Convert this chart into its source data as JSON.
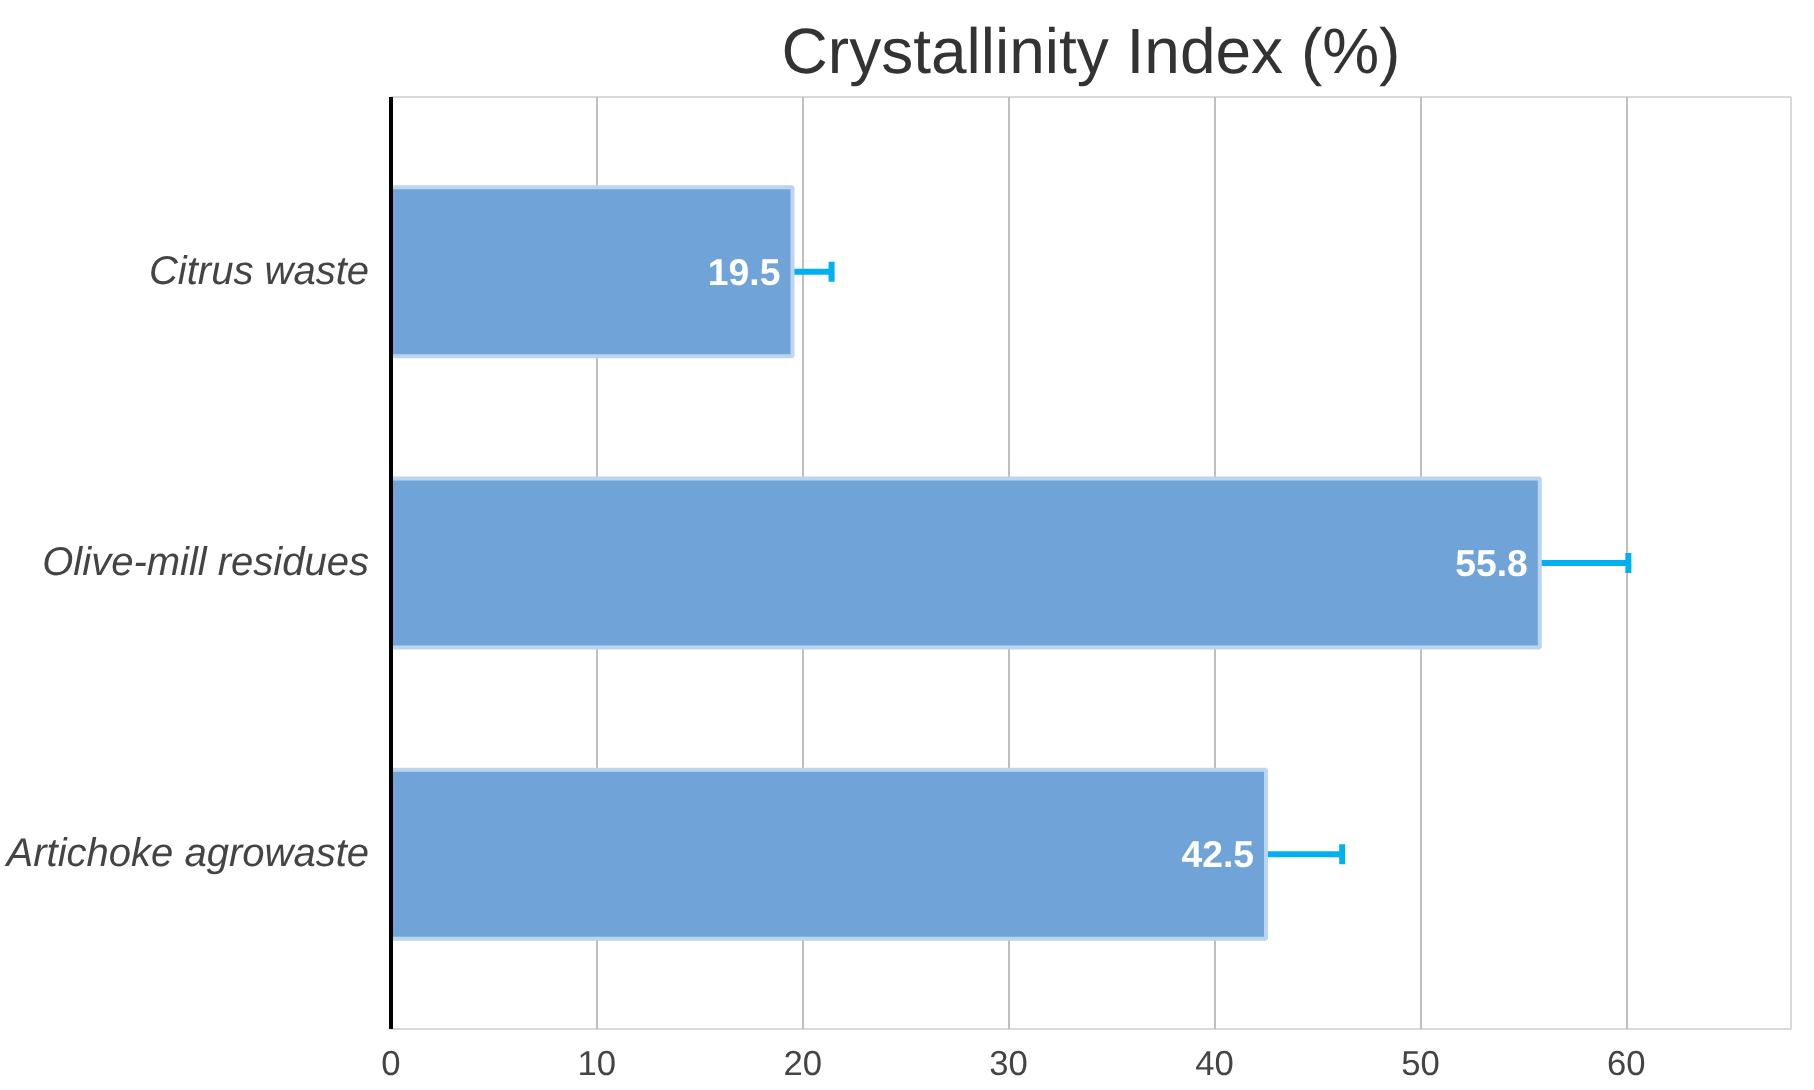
{
  "chart_data": {
    "type": "bar",
    "orientation": "horizontal",
    "title": "Crystallinity Index (%)",
    "categories": [
      "Citrus waste",
      "Olive-mill residues",
      "Artichoke agrowaste"
    ],
    "values": [
      19.5,
      55.8,
      42.5
    ],
    "color": "#70a4d8",
    "errors": [
      [
        19.5,
        21.4
      ],
      [
        55.8,
        60.1
      ],
      [
        42.5,
        46.2
      ]
    ],
    "data_labels": true,
    "xlim": [
      0,
      68
    ],
    "xticks": [
      0,
      10,
      20,
      30,
      40,
      50,
      60
    ],
    "grid": "x"
  }
}
